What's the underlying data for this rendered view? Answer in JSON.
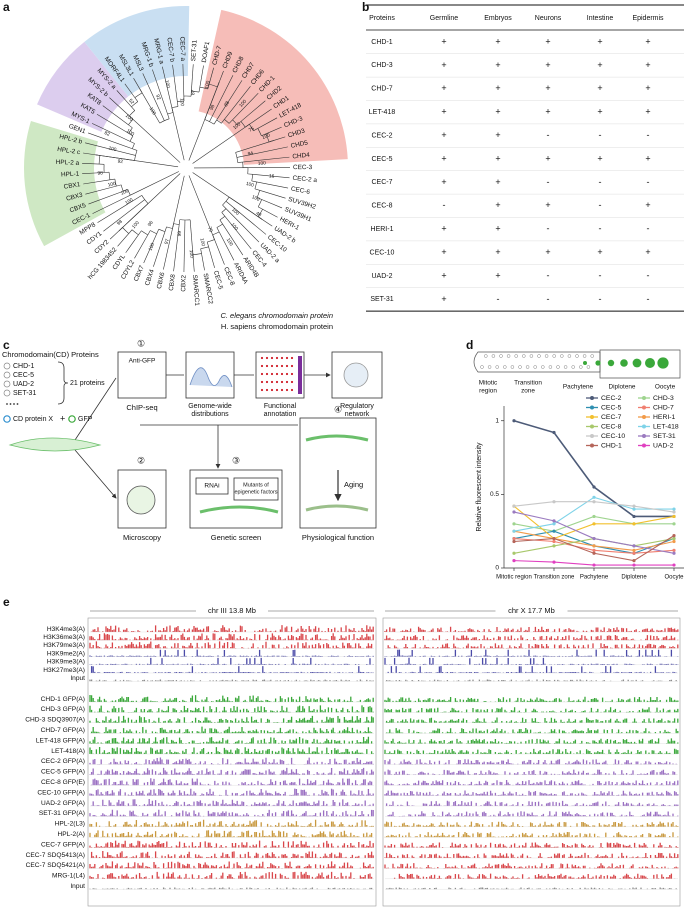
{
  "panels": [
    "a",
    "b",
    "c",
    "d",
    "e"
  ],
  "tree": {
    "leaves": [
      {
        "label": "CEC-1",
        "color": "#a23cbf"
      },
      {
        "label": "CBX5",
        "color": "#111111"
      },
      {
        "label": "CBX3",
        "color": "#111111"
      },
      {
        "label": "CBX1",
        "color": "#111111"
      },
      {
        "label": "HPL-1",
        "color": "#a23cbf"
      },
      {
        "label": "HPL-2 a",
        "color": "#a23cbf"
      },
      {
        "label": "HPL-2 c",
        "color": "#a23cbf"
      },
      {
        "label": "HPL-2 b",
        "color": "#a23cbf"
      },
      {
        "label": "GEN1",
        "color": "#111111"
      },
      {
        "label": "MYS-1",
        "color": "#a23cbf"
      },
      {
        "label": "KAT5",
        "color": "#111111"
      },
      {
        "label": "KAT8",
        "color": "#111111"
      },
      {
        "label": "MYS-2 b",
        "color": "#a23cbf"
      },
      {
        "label": "MYS-2 a",
        "color": "#a23cbf"
      },
      {
        "label": "MORF4L1",
        "color": "#111111"
      },
      {
        "label": "MSL3L1",
        "color": "#111111"
      },
      {
        "label": "MSL3",
        "color": "#111111"
      },
      {
        "label": "MRG-1 b",
        "color": "#a23cbf"
      },
      {
        "label": "MRG-1 a",
        "color": "#a23cbf"
      },
      {
        "label": "CEC-7 b",
        "color": "#a23cbf"
      },
      {
        "label": "CEC-7 a",
        "color": "#a23cbf"
      },
      {
        "label": "SET-31",
        "color": "#a23cbf"
      },
      {
        "label": "DOAF1",
        "color": "#111111"
      },
      {
        "label": "CHD-7",
        "color": "#a23cbf"
      },
      {
        "label": "CHD9",
        "color": "#111111"
      },
      {
        "label": "CHD8",
        "color": "#111111"
      },
      {
        "label": "CHD7",
        "color": "#111111"
      },
      {
        "label": "CHD6",
        "color": "#111111"
      },
      {
        "label": "CHD-1",
        "color": "#a23cbf"
      },
      {
        "label": "CHD2",
        "color": "#111111"
      },
      {
        "label": "CHD1",
        "color": "#111111"
      },
      {
        "label": "LET-418",
        "color": "#a23cbf"
      },
      {
        "label": "CHD-3",
        "color": "#a23cbf"
      },
      {
        "label": "CHD3",
        "color": "#111111"
      },
      {
        "label": "CHD5",
        "color": "#111111"
      },
      {
        "label": "CHD4",
        "color": "#111111"
      },
      {
        "label": "CEC-3",
        "color": "#a23cbf"
      },
      {
        "label": "CEC-2 a",
        "color": "#a23cbf"
      },
      {
        "label": "CEC-6",
        "color": "#a23cbf"
      },
      {
        "label": "SUV39H2",
        "color": "#111111"
      },
      {
        "label": "SUV39H1",
        "color": "#111111"
      },
      {
        "label": "HERI-1",
        "color": "#a23cbf"
      },
      {
        "label": "UAD-2 b",
        "color": "#a23cbf"
      },
      {
        "label": "CEC-10",
        "color": "#a23cbf"
      },
      {
        "label": "UAD-2 a",
        "color": "#a23cbf"
      },
      {
        "label": "CEC-4",
        "color": "#a23cbf"
      },
      {
        "label": "ARID4B",
        "color": "#111111"
      },
      {
        "label": "ARID4A",
        "color": "#111111"
      },
      {
        "label": "CEC-8",
        "color": "#a23cbf"
      },
      {
        "label": "CEC-5",
        "color": "#a23cbf"
      },
      {
        "label": "SMARCC2",
        "color": "#111111"
      },
      {
        "label": "SMARCC1",
        "color": "#111111"
      },
      {
        "label": "CBX2",
        "color": "#111111"
      },
      {
        "label": "CBX8",
        "color": "#111111"
      },
      {
        "label": "CBX6",
        "color": "#111111"
      },
      {
        "label": "CBX4",
        "color": "#111111"
      },
      {
        "label": "CBX7",
        "color": "#111111"
      },
      {
        "label": "CDYL2",
        "color": "#111111"
      },
      {
        "label": "CDYL",
        "color": "#111111"
      },
      {
        "label": "hCG 1983452",
        "color": "#111111"
      },
      {
        "label": "CDY2",
        "color": "#111111"
      },
      {
        "label": "CDY1",
        "color": "#111111"
      },
      {
        "label": "MPP8",
        "color": "#111111"
      }
    ],
    "bootstrap": [
      100,
      100,
      98,
      92,
      100,
      82,
      100,
      100,
      52,
      100,
      92,
      100,
      100,
      87,
      100,
      98,
      88,
      100,
      100,
      75,
      100,
      94,
      100,
      16,
      100,
      100,
      48,
      100,
      100,
      100,
      79,
      100,
      100,
      99,
      97,
      100,
      96,
      100,
      98,
      100
    ],
    "legend": [
      {
        "label": "C. elegans chromodomain protein",
        "color": "#a23cbf"
      },
      {
        "label": "H. sapiens chromodomain protein",
        "color": "#111111"
      }
    ]
  },
  "workflow": {
    "title": "Chromodomain(CD) Proteins",
    "examples": [
      "CHD-1",
      "CEC-5",
      "UAD-2",
      "SET-31"
    ],
    "count": "21 proteins",
    "protein_x": "CD protein X",
    "plus": "+",
    "gfp": "GFP",
    "steps": [
      "①",
      "②",
      "③",
      "④"
    ],
    "anti_gfp": "Anti-GFP",
    "chip_seq": "ChIP-seq",
    "genome": [
      "Genome-wide",
      "distributions"
    ],
    "annotation": [
      "Functional",
      "annotation"
    ],
    "network": [
      "Regulatory",
      "network"
    ],
    "microscopy": "Microscopy",
    "rnai": "RNAi",
    "mutants": [
      "Mutants of",
      "epigenetic factors"
    ],
    "screen": "Genetic screen",
    "aging": "Aging",
    "physio": "Physiological function"
  },
  "table": {
    "header": [
      "Proteins",
      "Germline",
      "Embryos",
      "Neurons",
      "Intestine",
      "Epidermis"
    ],
    "rows": [
      [
        "CHD-1",
        "+",
        "+",
        "+",
        "+",
        "+"
      ],
      [
        "CHD-3",
        "+",
        "+",
        "+",
        "+",
        "+"
      ],
      [
        "CHD-7",
        "+",
        "+",
        "+",
        "+",
        "+"
      ],
      [
        "LET-418",
        "+",
        "+",
        "+",
        "+",
        "+"
      ],
      [
        "CEC-2",
        "+",
        "+",
        "-",
        "-",
        "-"
      ],
      [
        "CEC-5",
        "+",
        "+",
        "+",
        "+",
        "+"
      ],
      [
        "CEC-7",
        "+",
        "+",
        "-",
        "-",
        "-"
      ],
      [
        "CEC-8",
        "-",
        "+",
        "+",
        "-",
        "+"
      ],
      [
        "HERI-1",
        "+",
        "+",
        "-",
        "-",
        "-"
      ],
      [
        "CEC-10",
        "+",
        "+",
        "+",
        "+",
        "+"
      ],
      [
        "UAD-2",
        "+",
        "+",
        "-",
        "-",
        "-"
      ],
      [
        "SET-31",
        "+",
        "-",
        "-",
        "-",
        "-"
      ]
    ]
  },
  "gonad_labels": [
    [
      "Mitotic",
      "region"
    ],
    [
      "Transition",
      "zone"
    ],
    [
      "Pachytene"
    ],
    [
      "Diplotene"
    ],
    [
      "Oocyte"
    ]
  ],
  "chart_data": {
    "type": "line",
    "ylabel": "Relative fluorescent intensity",
    "categories": [
      "Mitotic region",
      "Transition zone",
      "Pachytene",
      "Diplotene",
      "Oocyte"
    ],
    "ylim": [
      0,
      1.1
    ],
    "yticks": [
      0,
      0.5,
      1
    ],
    "legend": "upper right",
    "series": [
      {
        "name": "CEC-2",
        "color": "#4d5b78",
        "values": [
          1.0,
          0.92,
          0.55,
          0.35,
          0.35
        ]
      },
      {
        "name": "CHD-3",
        "color": "#9fd48f",
        "values": [
          0.3,
          0.25,
          0.35,
          0.3,
          0.3
        ]
      },
      {
        "name": "CEC-5",
        "color": "#2e8fb0",
        "values": [
          0.2,
          0.25,
          0.15,
          0.1,
          0.2
        ]
      },
      {
        "name": "CHD-7",
        "color": "#f07f70",
        "values": [
          0.2,
          0.18,
          0.12,
          0.1,
          0.12
        ]
      },
      {
        "name": "CEC-7",
        "color": "#f2c02e",
        "values": [
          0.42,
          0.2,
          0.3,
          0.3,
          0.35
        ]
      },
      {
        "name": "HERI-1",
        "color": "#f29b4a",
        "values": [
          0.25,
          0.2,
          0.15,
          0.12,
          0.18
        ]
      },
      {
        "name": "CEC-8",
        "color": "#a8c86b",
        "values": [
          0.1,
          0.15,
          0.2,
          0.15,
          0.2
        ]
      },
      {
        "name": "LET-418",
        "color": "#7fd3e8",
        "values": [
          0.25,
          0.3,
          0.48,
          0.4,
          0.4
        ]
      },
      {
        "name": "CEC-10",
        "color": "#c8c8c8",
        "values": [
          0.42,
          0.45,
          0.45,
          0.42,
          0.38
        ]
      },
      {
        "name": "SET-31",
        "color": "#9b7bc0",
        "values": [
          0.38,
          0.32,
          0.2,
          0.15,
          0.1
        ]
      },
      {
        "name": "CHD-1",
        "color": "#b5655a",
        "values": [
          0.18,
          0.2,
          0.1,
          0.05,
          0.22
        ]
      },
      {
        "name": "UAD-2",
        "color": "#e040c0",
        "values": [
          0.05,
          0.04,
          0.02,
          0.02,
          0.02
        ]
      }
    ]
  },
  "browser": {
    "regions": [
      "chr III 13.8 Mb",
      "chr X 17.7 Mb"
    ],
    "histone_tracks": [
      {
        "label": "H3K4me3(A)",
        "color": "#d9464a"
      },
      {
        "label": "H3K36me3(A)",
        "color": "#d9464a"
      },
      {
        "label": "H3K79me3(A)",
        "color": "#d9464a"
      },
      {
        "label": "H3K9me2(A)",
        "color": "#4b4ba8"
      },
      {
        "label": "H3K9me3(A)",
        "color": "#4b4ba8"
      },
      {
        "label": "H3K27me3(A)",
        "color": "#4b4ba8"
      },
      {
        "label": "Input",
        "color": "#8a8a8a"
      }
    ],
    "cd_tracks": [
      {
        "label": "CHD-1 GFP(A)",
        "color": "#3aa83a"
      },
      {
        "label": "CHD-3 GFP(A)",
        "color": "#3aa83a"
      },
      {
        "label": "CHD-3 SDQ3907(A)",
        "color": "#3aa83a"
      },
      {
        "label": "CHD-7 GFP(A)",
        "color": "#3aa83a"
      },
      {
        "label": "LET-418 GFP(A)",
        "color": "#3aa83a"
      },
      {
        "label": "LET-418(A)",
        "color": "#3aa83a"
      },
      {
        "label": "CEC-2 GFP(A)",
        "color": "#9a6fc2"
      },
      {
        "label": "CEC-5 GFP(A)",
        "color": "#9a6fc2"
      },
      {
        "label": "CEC-8 GFP(E)",
        "color": "#9a6fc2"
      },
      {
        "label": "CEC-10 GFP(A)",
        "color": "#9a6fc2"
      },
      {
        "label": "UAD-2 GFP(A)",
        "color": "#9a6fc2"
      },
      {
        "label": "SET-31 GFP(A)",
        "color": "#9a6fc2"
      },
      {
        "label": "HPL-2(L3)",
        "color": "#c9993f"
      },
      {
        "label": "HPL-2(A)",
        "color": "#c9993f"
      },
      {
        "label": "CEC-7 GFP(A)",
        "color": "#d9464a"
      },
      {
        "label": "CEC-7 SDQ5413(A)",
        "color": "#d9464a"
      },
      {
        "label": "CEC-7 SDQ5421(A)",
        "color": "#d9464a"
      },
      {
        "label": "MRG-1(L4)",
        "color": "#d9464a"
      },
      {
        "label": "Input",
        "color": "#8a8a8a"
      }
    ]
  }
}
